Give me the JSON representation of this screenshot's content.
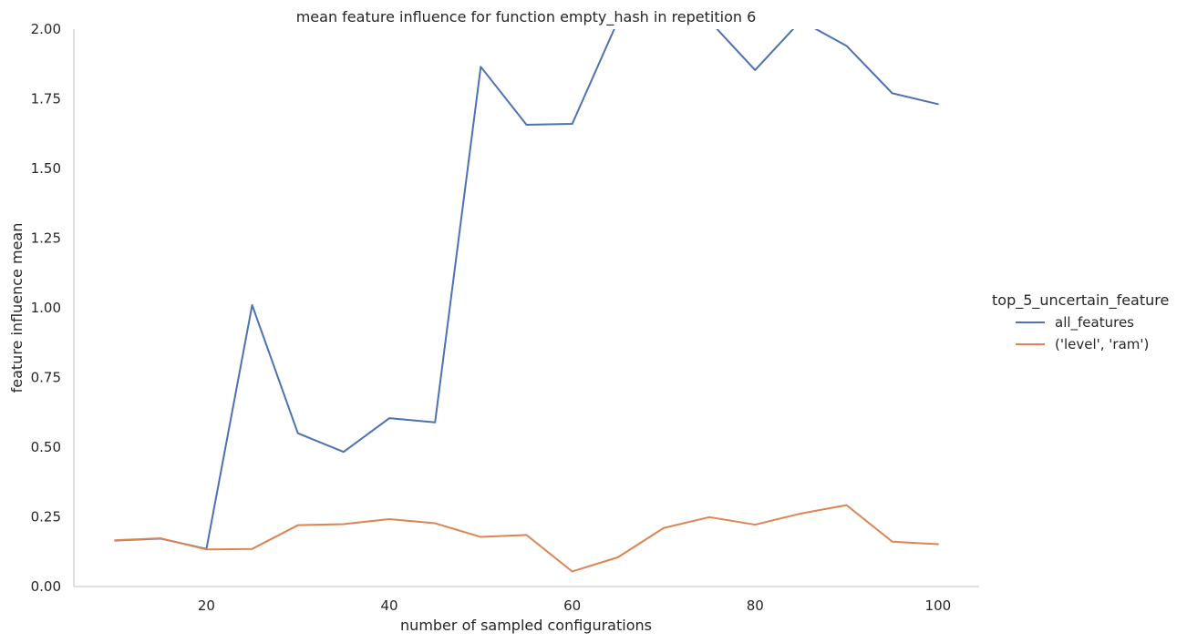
{
  "chart_data": {
    "type": "line",
    "title": "mean feature influence for function empty_hash in repetition 6",
    "xlabel": "number of sampled configurations",
    "ylabel": "feature influence mean",
    "xlim": [
      5.5,
      104.5
    ],
    "ylim": [
      0,
      2.0
    ],
    "xticks": [
      "20",
      "40",
      "60",
      "80",
      "100"
    ],
    "yticks": [
      "0.00",
      "0.25",
      "0.50",
      "0.75",
      "1.00",
      "1.25",
      "1.50",
      "1.75",
      "2.00"
    ],
    "grid": false,
    "legend": {
      "title": "top_5_uncertain_feature",
      "position": "right"
    },
    "x": [
      10,
      15,
      20,
      25,
      30,
      35,
      40,
      45,
      50,
      55,
      60,
      65,
      70,
      75,
      80,
      85,
      90,
      95,
      100
    ],
    "series": [
      {
        "name": "all_features",
        "color": "#4c72b0",
        "values": [
          0.165,
          0.172,
          0.135,
          1.01,
          0.55,
          0.483,
          0.604,
          0.589,
          1.865,
          1.657,
          1.66,
          2.03,
          2.15,
          2.03,
          1.853,
          2.03,
          1.94,
          1.77,
          1.731
        ]
      },
      {
        "name": "('level', 'ram')",
        "color": "#dd8452",
        "values": [
          0.166,
          0.173,
          0.133,
          0.135,
          0.22,
          0.224,
          0.242,
          0.227,
          0.178,
          0.185,
          0.054,
          0.105,
          0.21,
          0.249,
          0.222,
          0.262,
          0.292,
          0.161,
          0.152
        ]
      }
    ]
  }
}
